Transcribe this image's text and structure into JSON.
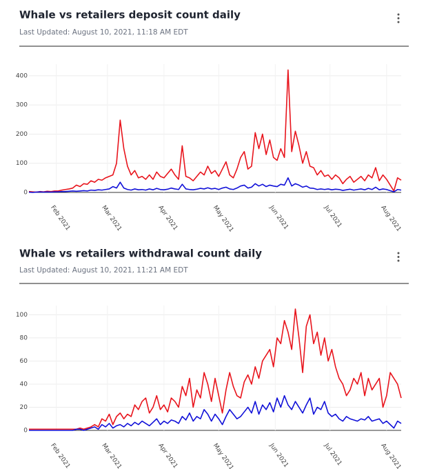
{
  "chart_data": [
    {
      "type": "line",
      "title": "Whale vs retailers deposit count daily",
      "subtitle": "Last Updated: August 10, 2021, 11:18 AM EDT",
      "xlim": [
        0,
        102
      ],
      "xticks": [
        {
          "value": 7.5,
          "label": "Feb 2021"
        },
        {
          "value": 21.5,
          "label": "Mar 2021"
        },
        {
          "value": 37,
          "label": "Apr 2021"
        },
        {
          "value": 52,
          "label": "May 2021"
        },
        {
          "value": 67.5,
          "label": "Jun 2021"
        },
        {
          "value": 82.5,
          "label": "Jul 2021"
        },
        {
          "value": 98,
          "label": "Aug 2021"
        }
      ],
      "ylim": [
        0,
        440
      ],
      "yticks": [
        0,
        100,
        200,
        300,
        400
      ],
      "grid": true,
      "series": [
        {
          "color": "#e8141c",
          "values": [
            3,
            2,
            1,
            3,
            2,
            4,
            3,
            5,
            5,
            8,
            10,
            12,
            15,
            25,
            20,
            30,
            28,
            40,
            35,
            45,
            42,
            50,
            55,
            60,
            100,
            248,
            150,
            90,
            60,
            75,
            50,
            55,
            45,
            60,
            45,
            70,
            55,
            50,
            65,
            80,
            60,
            45,
            160,
            55,
            50,
            40,
            55,
            70,
            60,
            90,
            65,
            75,
            55,
            80,
            105,
            60,
            50,
            80,
            120,
            140,
            80,
            90,
            205,
            150,
            200,
            130,
            180,
            120,
            110,
            150,
            120,
            420,
            140,
            210,
            160,
            100,
            140,
            90,
            85,
            60,
            75,
            55,
            60,
            45,
            60,
            50,
            30,
            45,
            55,
            35,
            45,
            55,
            40,
            60,
            50,
            85,
            40,
            60,
            45,
            25,
            5,
            50,
            42
          ]
        },
        {
          "color": "#1010d8",
          "values": [
            1,
            0,
            1,
            2,
            1,
            2,
            1,
            2,
            2,
            3,
            3,
            4,
            5,
            4,
            5,
            6,
            5,
            8,
            7,
            9,
            8,
            10,
            12,
            20,
            15,
            35,
            15,
            10,
            8,
            12,
            9,
            10,
            8,
            12,
            9,
            14,
            10,
            9,
            11,
            15,
            12,
            10,
            28,
            12,
            10,
            9,
            11,
            14,
            12,
            16,
            12,
            14,
            10,
            15,
            18,
            12,
            10,
            15,
            22,
            25,
            15,
            18,
            30,
            22,
            28,
            20,
            25,
            22,
            20,
            28,
            25,
            50,
            22,
            30,
            25,
            18,
            22,
            15,
            14,
            10,
            12,
            10,
            12,
            9,
            11,
            10,
            7,
            9,
            11,
            8,
            10,
            12,
            9,
            14,
            10,
            18,
            9,
            12,
            10,
            6,
            2,
            10,
            8
          ]
        }
      ]
    },
    {
      "type": "line",
      "title": "Whale vs retailers withdrawal count daily",
      "subtitle": "Last Updated: August 10, 2021, 11:21 AM EDT",
      "xlim": [
        0,
        102
      ],
      "xticks": [
        {
          "value": 7.5,
          "label": "Feb 2021"
        },
        {
          "value": 21.5,
          "label": "Mar 2021"
        },
        {
          "value": 37,
          "label": "Apr 2021"
        },
        {
          "value": 52,
          "label": "May 2021"
        },
        {
          "value": 67.5,
          "label": "Jun 2021"
        },
        {
          "value": 82.5,
          "label": "Jul 2021"
        },
        {
          "value": 98,
          "label": "Aug 2021"
        }
      ],
      "ylim": [
        0,
        108
      ],
      "yticks": [
        0,
        20,
        40,
        60,
        80,
        100
      ],
      "grid": true,
      "series": [
        {
          "color": "#e8141c",
          "values": [
            1,
            1,
            1,
            1,
            1,
            1,
            1,
            1,
            1,
            1,
            1,
            1,
            1,
            1,
            2,
            1,
            2,
            3,
            5,
            3,
            10,
            8,
            14,
            5,
            12,
            15,
            10,
            14,
            12,
            22,
            18,
            25,
            28,
            15,
            20,
            30,
            18,
            22,
            16,
            28,
            25,
            20,
            38,
            30,
            45,
            20,
            35,
            28,
            50,
            40,
            25,
            45,
            30,
            15,
            35,
            50,
            38,
            30,
            28,
            42,
            48,
            40,
            55,
            45,
            60,
            65,
            70,
            55,
            80,
            75,
            95,
            85,
            70,
            105,
            80,
            50,
            90,
            100,
            75,
            85,
            65,
            80,
            60,
            70,
            55,
            45,
            40,
            30,
            35,
            45,
            40,
            50,
            30,
            45,
            35,
            40,
            45,
            20,
            30,
            50,
            45,
            40,
            28
          ]
        },
        {
          "color": "#1010d8",
          "values": [
            0,
            0,
            0,
            0,
            0,
            0,
            0,
            0,
            0,
            0,
            0,
            0,
            0,
            1,
            1,
            0,
            1,
            2,
            3,
            1,
            5,
            3,
            6,
            2,
            4,
            5,
            3,
            6,
            4,
            7,
            5,
            8,
            6,
            4,
            7,
            10,
            5,
            8,
            6,
            9,
            8,
            6,
            12,
            9,
            15,
            8,
            12,
            10,
            18,
            14,
            8,
            14,
            10,
            5,
            12,
            18,
            14,
            10,
            12,
            16,
            20,
            15,
            25,
            14,
            22,
            18,
            24,
            16,
            28,
            20,
            30,
            22,
            18,
            25,
            20,
            15,
            22,
            28,
            14,
            20,
            18,
            25,
            15,
            12,
            14,
            10,
            8,
            12,
            10,
            9,
            8,
            10,
            9,
            12,
            8,
            9,
            10,
            6,
            8,
            5,
            2,
            8,
            6
          ]
        }
      ]
    }
  ]
}
